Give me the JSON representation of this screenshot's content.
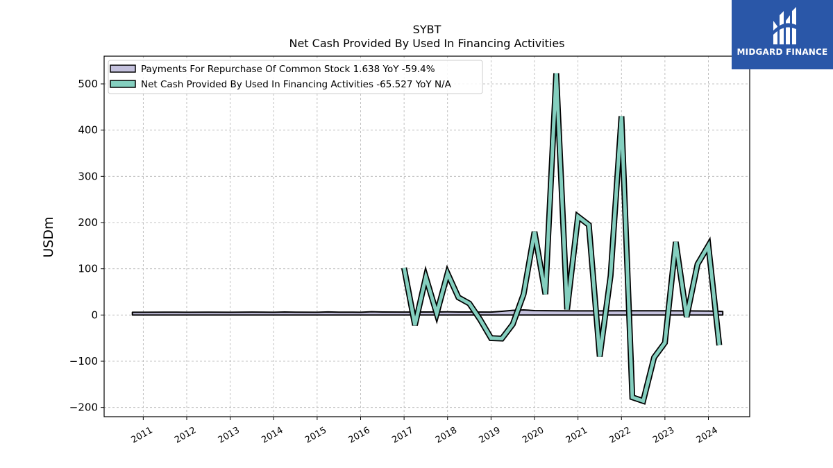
{
  "logo": {
    "text": "MIDGARD FINANCE"
  },
  "chart_data": {
    "type": "line",
    "title": "SYBT",
    "subtitle": "Net Cash Provided By Used In Financing Activities",
    "ylabel": "USDm",
    "xlabel": "",
    "ylim": [
      -220,
      560
    ],
    "xlim": [
      2010.1,
      2024.95
    ],
    "grid": true,
    "legend_position": "top-left",
    "y_ticks": [
      -200,
      -100,
      0,
      100,
      200,
      300,
      400,
      500
    ],
    "y_tick_labels": [
      "−200",
      "−100",
      "0",
      "100",
      "200",
      "300",
      "400",
      "500"
    ],
    "x_ticks": [
      2011,
      2012,
      2013,
      2014,
      2015,
      2016,
      2017,
      2018,
      2019,
      2020,
      2021,
      2022,
      2023,
      2024
    ],
    "x_tick_labels": [
      "2011",
      "2012",
      "2013",
      "2014",
      "2015",
      "2016",
      "2017",
      "2018",
      "2019",
      "2020",
      "2021",
      "2022",
      "2023",
      "2024"
    ],
    "series": [
      {
        "name": "Payments For Repurchase Of Common Stock",
        "legend_label": "Payments For Repurchase Of Common Stock  1.638 YoY -59.4%",
        "kind": "area",
        "color": "#c4c1dd",
        "x": [
          2010.75,
          2011.0,
          2011.5,
          2012.0,
          2012.5,
          2013.0,
          2013.5,
          2014.0,
          2014.25,
          2014.5,
          2015.0,
          2015.25,
          2015.5,
          2016.0,
          2016.25,
          2016.5,
          2017.0,
          2017.5,
          2018.0,
          2018.25,
          2018.5,
          2019.0,
          2019.25,
          2019.5,
          2019.75,
          2020.0,
          2020.5,
          2021.0,
          2021.5,
          2022.0,
          2022.5,
          2023.0,
          2023.5,
          2024.0,
          2024.25,
          2024.33
        ],
        "values": [
          0,
          0,
          0.2,
          0,
          0.2,
          0,
          0.3,
          0,
          0.5,
          0.2,
          0,
          0.6,
          0.2,
          0,
          1.0,
          0.5,
          0.3,
          0.5,
          0.8,
          0.5,
          0.5,
          0.3,
          2.0,
          4.0,
          5.0,
          3.5,
          3.2,
          3.0,
          3.0,
          3.2,
          3.2,
          3.2,
          3.0,
          2.5,
          2.0,
          1.638
        ]
      },
      {
        "name": "Net Cash Provided By Used In Financing Activities",
        "legend_label": "Net Cash Provided By Used In Financing Activities  -65.527 YoY N/A",
        "kind": "line",
        "color": "#84cfbf",
        "x": [
          2017.0,
          2017.25,
          2017.5,
          2017.75,
          2018.0,
          2018.25,
          2018.5,
          2018.75,
          2019.0,
          2019.25,
          2019.5,
          2019.75,
          2020.0,
          2020.25,
          2020.5,
          2020.75,
          2021.0,
          2021.25,
          2021.5,
          2021.75,
          2022.0,
          2022.25,
          2022.5,
          2022.75,
          2023.0,
          2023.25,
          2023.5,
          2023.75,
          2024.0,
          2024.25
        ],
        "values": [
          102,
          -22,
          82,
          3,
          90,
          38,
          25,
          -10,
          -50,
          -51,
          -20,
          45,
          180,
          45,
          523,
          12,
          213,
          195,
          -90,
          85,
          430,
          -178,
          -186,
          -92,
          -60,
          158,
          -4,
          110,
          150,
          -65.527
        ]
      }
    ]
  }
}
